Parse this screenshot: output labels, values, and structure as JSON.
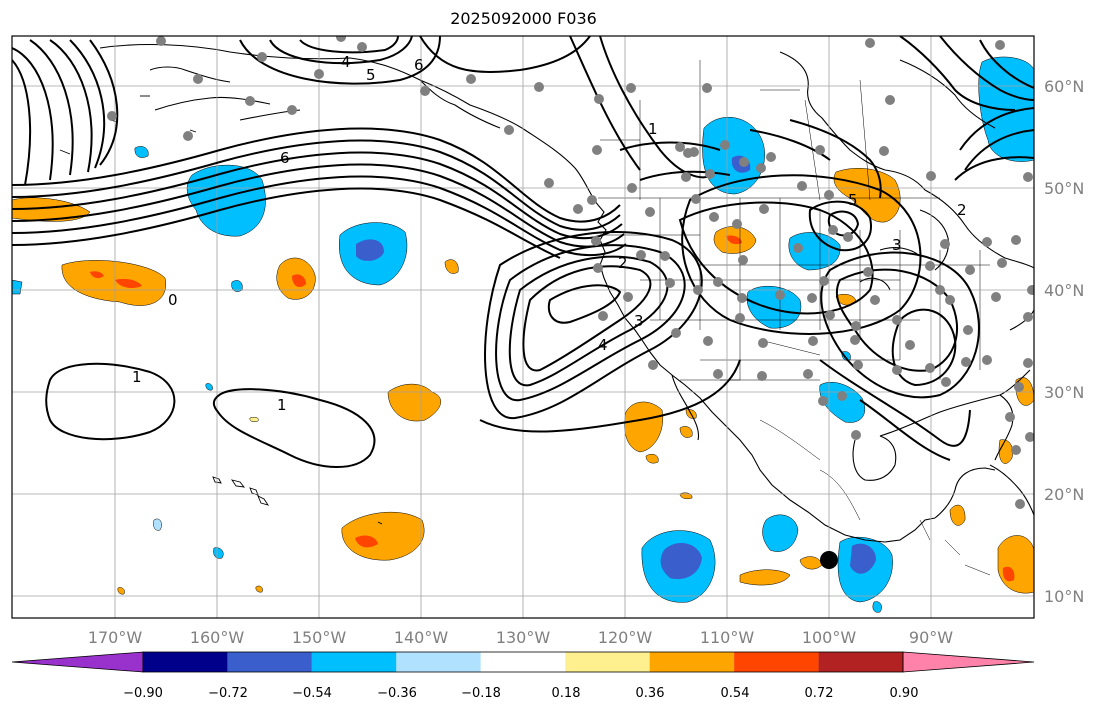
{
  "title": "2025092000 F036",
  "lon_ticks": [
    "170°W",
    "160°W",
    "150°W",
    "140°W",
    "130°W",
    "120°W",
    "110°W",
    "100°W",
    "90°W"
  ],
  "lat_ticks": [
    "60°N",
    "50°N",
    "40°N",
    "30°N",
    "20°N",
    "10°N"
  ],
  "colorbar": {
    "colors": [
      "#9932cc",
      "#00008b",
      "#3a5fcd",
      "#00bfff",
      "#b0e2ff",
      "#ffffff",
      "#fff08f",
      "#ffa500",
      "#ff4500",
      "#b22222",
      "#ff82ab"
    ],
    "labels": [
      "−0.90",
      "−0.72",
      "−0.54",
      "−0.36",
      "−0.18",
      "0.18",
      "0.36",
      "0.54",
      "0.72",
      "0.90"
    ]
  },
  "contour_labels": [
    "1",
    "2",
    "3",
    "4",
    "5",
    "6",
    "0",
    "1",
    "1",
    "6",
    "2",
    "3",
    "4",
    "5"
  ]
}
